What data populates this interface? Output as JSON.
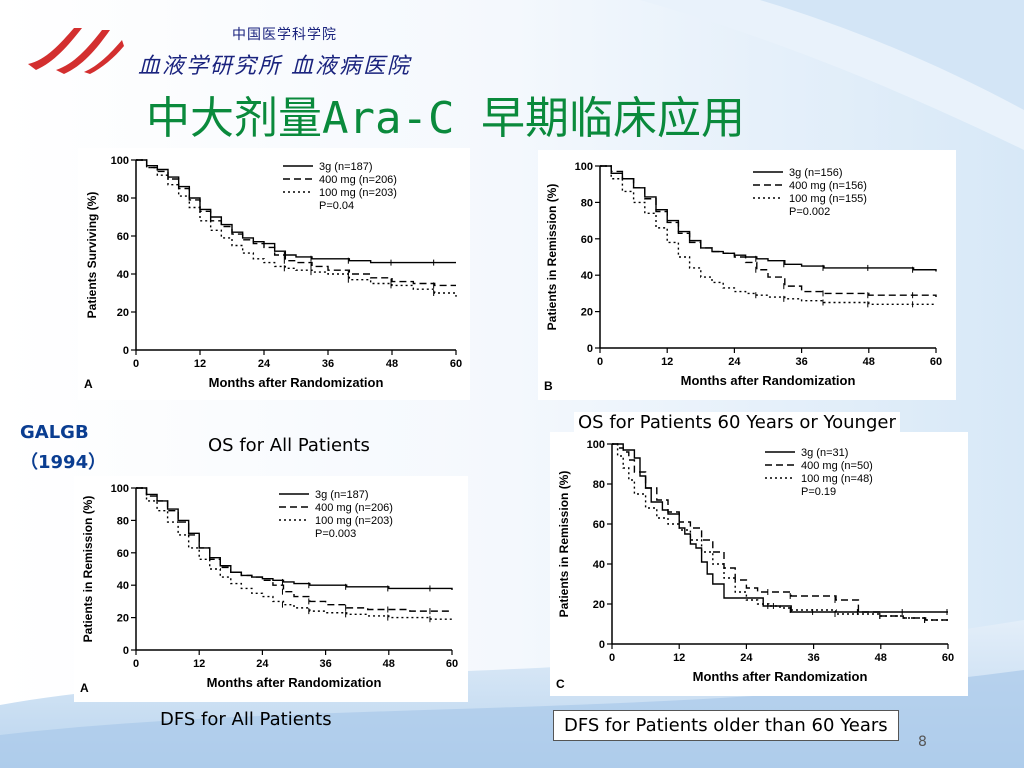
{
  "logo": {
    "line1": "中国医学科学院",
    "line2": "血液学研究所 血液病医院"
  },
  "slide": {
    "title": "中大剂量Ara-C 早期临床应用",
    "study": "GALGB",
    "study_year": "（1994）",
    "page_number": "8"
  },
  "captions": {
    "a": "OS for All Patients",
    "b": "OS for Patients 60 Years or Younger",
    "c": "DFS for All Patients",
    "d": "DFS for Patients older than 60 Years"
  },
  "colors": {
    "title": "#0a8a3c",
    "study": "#0a3d91",
    "logo": "#1a237e",
    "logo_mark": "#d32f2f"
  },
  "chart_data": [
    {
      "type": "line",
      "panel_label": "A",
      "xlabel": "Months after Randomization",
      "ylabel": "Patients Surviving (%)",
      "xlim": [
        0,
        60
      ],
      "ylim": [
        0,
        100
      ],
      "xticks": [
        0,
        12,
        24,
        36,
        48,
        60
      ],
      "yticks": [
        0,
        20,
        40,
        60,
        80,
        100
      ],
      "pvalue": "P=0.04",
      "series": [
        {
          "name": "3g (n=187)",
          "style": "solid",
          "x": [
            0,
            2,
            4,
            6,
            8,
            10,
            12,
            14,
            16,
            18,
            20,
            22,
            24,
            26,
            28,
            30,
            33,
            36,
            40,
            44,
            48,
            52,
            56,
            60
          ],
          "y": [
            100,
            97,
            95,
            91,
            86,
            80,
            74,
            70,
            66,
            62,
            59,
            57,
            56,
            52,
            50,
            49,
            48,
            48,
            47,
            46,
            46,
            46,
            46,
            46
          ]
        },
        {
          "name": "400 mg (n=206)",
          "style": "dashed",
          "x": [
            0,
            2,
            4,
            6,
            8,
            10,
            12,
            14,
            16,
            18,
            20,
            22,
            24,
            26,
            28,
            30,
            33,
            36,
            40,
            44,
            48,
            52,
            56,
            60
          ],
          "y": [
            100,
            96,
            94,
            90,
            85,
            79,
            73,
            68,
            65,
            61,
            58,
            56,
            54,
            50,
            47,
            46,
            44,
            42,
            40,
            38,
            36,
            35,
            34,
            34
          ]
        },
        {
          "name": "100 mg (n=203)",
          "style": "dotted",
          "x": [
            0,
            2,
            4,
            6,
            8,
            10,
            12,
            14,
            16,
            18,
            20,
            22,
            24,
            26,
            28,
            30,
            33,
            36,
            40,
            44,
            48,
            52,
            56,
            60
          ],
          "y": [
            100,
            96,
            92,
            87,
            81,
            75,
            68,
            63,
            59,
            55,
            51,
            48,
            46,
            44,
            43,
            42,
            41,
            40,
            37,
            35,
            34,
            32,
            30,
            28
          ]
        }
      ]
    },
    {
      "type": "line",
      "panel_label": "B",
      "xlabel": "Months after Randomization",
      "ylabel": "Patients in Remission (%)",
      "xlim": [
        0,
        60
      ],
      "ylim": [
        0,
        100
      ],
      "xticks": [
        0,
        12,
        24,
        36,
        48,
        60
      ],
      "yticks": [
        0,
        20,
        40,
        60,
        80,
        100
      ],
      "pvalue": "P=0.002",
      "series": [
        {
          "name": "3g (n=156)",
          "style": "solid",
          "x": [
            0,
            2,
            4,
            6,
            8,
            10,
            12,
            14,
            16,
            18,
            20,
            22,
            24,
            26,
            28,
            30,
            33,
            36,
            40,
            44,
            48,
            52,
            56,
            60
          ],
          "y": [
            100,
            96,
            93,
            88,
            83,
            76,
            70,
            64,
            59,
            55,
            53,
            52,
            51,
            50,
            49,
            48,
            46,
            45,
            44,
            44,
            44,
            44,
            43,
            42
          ]
        },
        {
          "name": "400 mg (n=156)",
          "style": "dashed",
          "x": [
            0,
            2,
            4,
            6,
            8,
            10,
            12,
            14,
            16,
            18,
            20,
            22,
            24,
            26,
            28,
            30,
            33,
            36,
            40,
            44,
            48,
            52,
            56,
            60
          ],
          "y": [
            100,
            97,
            93,
            88,
            82,
            75,
            69,
            63,
            58,
            55,
            53,
            52,
            50,
            47,
            43,
            39,
            34,
            31,
            30,
            30,
            29,
            29,
            29,
            28
          ]
        },
        {
          "name": "100 mg (n=155)",
          "style": "dotted",
          "x": [
            0,
            2,
            4,
            6,
            8,
            10,
            12,
            14,
            16,
            18,
            20,
            22,
            24,
            26,
            28,
            30,
            33,
            36,
            40,
            44,
            48,
            52,
            56,
            60
          ],
          "y": [
            100,
            93,
            86,
            80,
            74,
            66,
            58,
            50,
            44,
            39,
            36,
            33,
            31,
            30,
            29,
            28,
            27,
            26,
            25,
            25,
            24,
            24,
            24,
            24
          ]
        }
      ]
    },
    {
      "type": "line",
      "panel_label": "A",
      "xlabel": "Months after Randomization",
      "ylabel": "Patients in Remission (%)",
      "xlim": [
        0,
        60
      ],
      "ylim": [
        0,
        100
      ],
      "xticks": [
        0,
        12,
        24,
        36,
        48,
        60
      ],
      "yticks": [
        0,
        20,
        40,
        60,
        80,
        100
      ],
      "pvalue": "P=0.003",
      "series": [
        {
          "name": "3g (n=187)",
          "style": "solid",
          "x": [
            0,
            2,
            4,
            6,
            8,
            10,
            12,
            14,
            16,
            18,
            20,
            22,
            24,
            26,
            28,
            30,
            33,
            36,
            40,
            44,
            48,
            52,
            56,
            60
          ],
          "y": [
            100,
            96,
            92,
            87,
            80,
            72,
            63,
            57,
            52,
            48,
            46,
            45,
            44,
            43,
            42,
            41,
            40,
            40,
            39,
            39,
            38,
            38,
            38,
            37
          ]
        },
        {
          "name": "400 mg (n=206)",
          "style": "dashed",
          "x": [
            0,
            2,
            4,
            6,
            8,
            10,
            12,
            14,
            16,
            18,
            20,
            22,
            24,
            26,
            28,
            30,
            33,
            36,
            40,
            44,
            48,
            52,
            56,
            60
          ],
          "y": [
            100,
            95,
            92,
            86,
            79,
            71,
            63,
            56,
            51,
            48,
            46,
            45,
            43,
            40,
            36,
            33,
            30,
            28,
            26,
            25,
            25,
            24,
            24,
            24
          ]
        },
        {
          "name": "100 mg (n=203)",
          "style": "dotted",
          "x": [
            0,
            2,
            4,
            6,
            8,
            10,
            12,
            14,
            16,
            18,
            20,
            22,
            24,
            26,
            28,
            30,
            33,
            36,
            40,
            44,
            48,
            52,
            56,
            60
          ],
          "y": [
            100,
            92,
            86,
            79,
            71,
            63,
            56,
            50,
            45,
            41,
            38,
            35,
            33,
            30,
            28,
            26,
            24,
            23,
            22,
            21,
            20,
            20,
            19,
            19
          ]
        }
      ]
    },
    {
      "type": "line",
      "panel_label": "C",
      "xlabel": "Months after Randomization",
      "ylabel": "Patients in Remission (%)",
      "xlim": [
        0,
        60
      ],
      "ylim": [
        0,
        100
      ],
      "xticks": [
        0,
        12,
        24,
        36,
        48,
        60
      ],
      "yticks": [
        0,
        20,
        40,
        60,
        80,
        100
      ],
      "pvalue": "P=0.19",
      "series": [
        {
          "name": "3g (n=31)",
          "style": "solid",
          "x": [
            0,
            1,
            2,
            4,
            5,
            6,
            7,
            9,
            10,
            12,
            13,
            14,
            15,
            16,
            17,
            18,
            20,
            22,
            24,
            27,
            29,
            32,
            36,
            40,
            44,
            48,
            52,
            56,
            60
          ],
          "y": [
            100,
            100,
            97,
            93,
            84,
            78,
            71,
            67,
            65,
            58,
            55,
            50,
            48,
            41,
            35,
            30,
            23,
            23,
            23,
            19,
            19,
            16,
            16,
            16,
            16,
            16,
            16,
            16,
            16
          ]
        },
        {
          "name": "400 mg (n=50)",
          "style": "dashed",
          "x": [
            0,
            1,
            2,
            3,
            4,
            6,
            8,
            10,
            12,
            14,
            16,
            18,
            20,
            22,
            24,
            26,
            28,
            30,
            32,
            36,
            40,
            44,
            48,
            52,
            56,
            60
          ],
          "y": [
            100,
            98,
            96,
            92,
            86,
            78,
            72,
            66,
            61,
            58,
            52,
            46,
            38,
            32,
            28,
            26,
            26,
            26,
            24,
            24,
            22,
            16,
            14,
            13,
            12,
            12
          ]
        },
        {
          "name": "100 mg (n=48)",
          "style": "dotted",
          "x": [
            0,
            1,
            2,
            3,
            4,
            6,
            8,
            10,
            12,
            14,
            16,
            18,
            20,
            22,
            24,
            26,
            28,
            30,
            32,
            36,
            40,
            44,
            48,
            52,
            56,
            60
          ],
          "y": [
            100,
            94,
            88,
            82,
            75,
            68,
            63,
            60,
            57,
            52,
            46,
            40,
            33,
            26,
            22,
            20,
            19,
            18,
            17,
            17,
            15,
            15,
            14,
            13,
            12,
            12
          ]
        }
      ]
    }
  ]
}
